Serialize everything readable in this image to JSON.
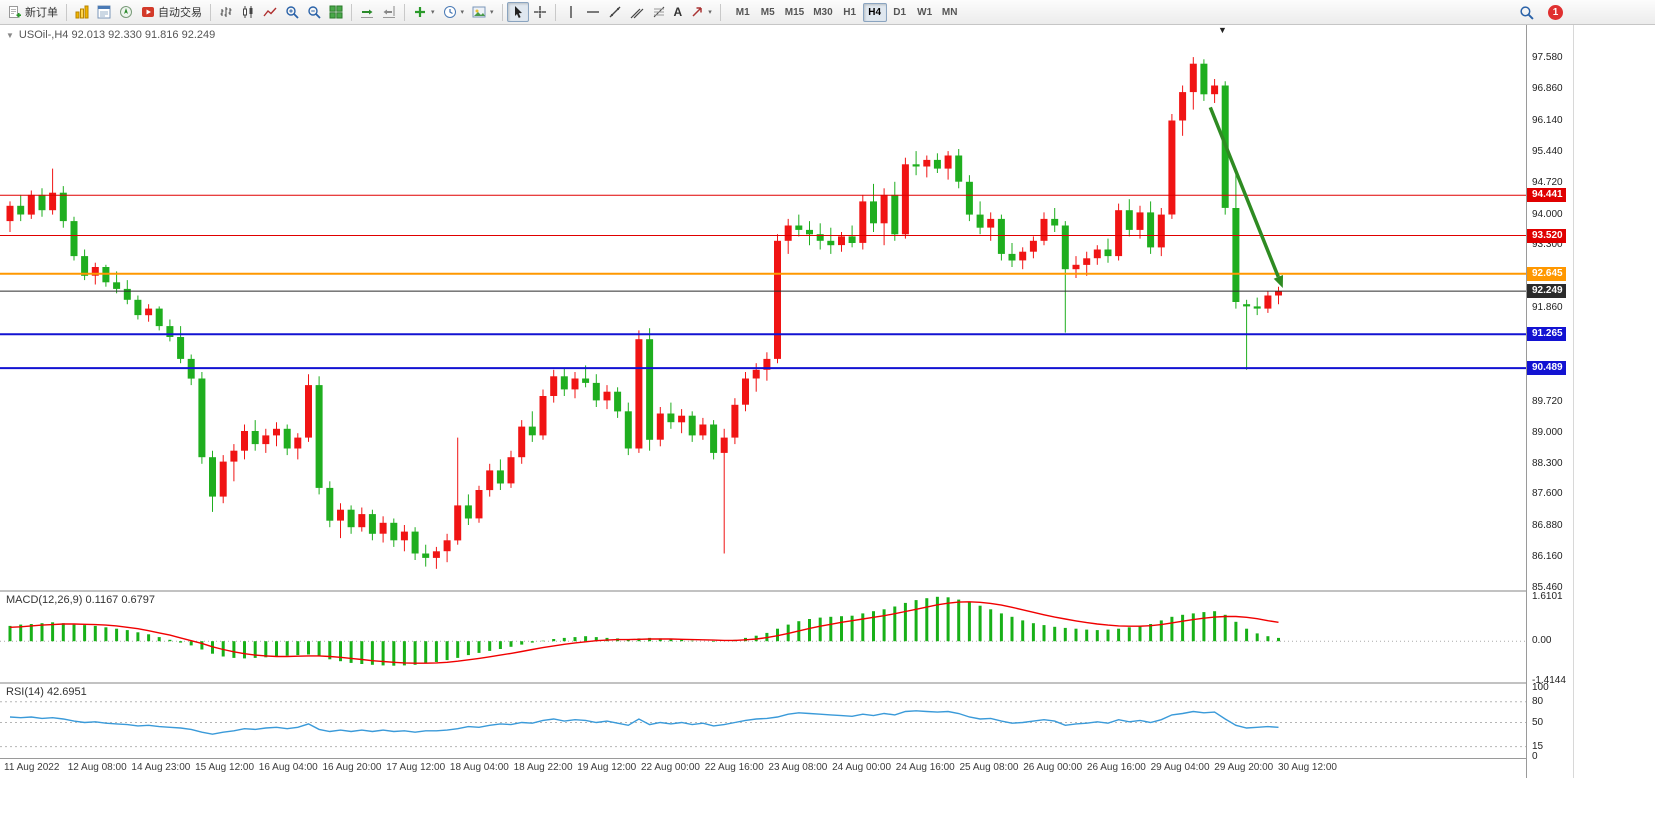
{
  "toolbar": {
    "new_order_label": "新订单",
    "autotrading_label": "自动交易",
    "timeframes": [
      "M1",
      "M5",
      "M15",
      "M30",
      "H1",
      "H4",
      "D1",
      "W1",
      "MN"
    ],
    "active_timeframe": "H4",
    "text_tool_label": "A",
    "notification_count": "1",
    "icon_names": [
      "new-order",
      "charts",
      "market-watch",
      "navigator",
      "autotrading",
      "bar-chart",
      "candlestick-chart",
      "line-chart",
      "zoom-in",
      "zoom-out",
      "tile-windows",
      "auto-scroll",
      "chart-shift",
      "add-indicator",
      "periods",
      "templates",
      "cursor",
      "crosshair",
      "vertical-line",
      "horizontal-line",
      "trendline",
      "equidistant-channel",
      "fibonacci",
      "text",
      "arrows",
      "search",
      "notifications"
    ]
  },
  "chart": {
    "title_text": "USOil-,H4 92.013 92.330 91.816 92.249",
    "oct_toggle": "▼",
    "shift_marker": "▼"
  },
  "chart_data": [
    {
      "type": "candlestick",
      "title": "USOil-,H4",
      "ohlc": {
        "open": 92.013,
        "high": 92.33,
        "low": 91.816,
        "close": 92.249
      },
      "ylim": [
        85.46,
        97.58
      ],
      "y_ticks": [
        97.58,
        96.86,
        96.14,
        95.44,
        94.72,
        94.0,
        93.3,
        92.58,
        91.86,
        91.16,
        90.44,
        89.72,
        89.0,
        88.3,
        87.6,
        86.88,
        86.16,
        85.46
      ],
      "x_labels": [
        "11 Aug 2022",
        "12 Aug 08:00",
        "14 Aug 23:00",
        "15 Aug 12:00",
        "16 Aug 04:00",
        "16 Aug 20:00",
        "17 Aug 12:00",
        "18 Aug 04:00",
        "18 Aug 22:00",
        "19 Aug 12:00",
        "22 Aug 00:00",
        "22 Aug 16:00",
        "23 Aug 08:00",
        "24 Aug 00:00",
        "24 Aug 16:00",
        "25 Aug 08:00",
        "26 Aug 00:00",
        "26 Aug 16:00",
        "29 Aug 04:00",
        "29 Aug 20:00",
        "30 Aug 12:00"
      ],
      "bull_color": "#f01414",
      "bear_color": "#1fae1f",
      "hlines": [
        {
          "price": 94.441,
          "color": "#e00000",
          "width": 1,
          "role": "resistance-line-label"
        },
        {
          "price": 93.52,
          "color": "#e00000",
          "width": 1,
          "role": "resistance-line-label"
        },
        {
          "price": 92.645,
          "color": "#ff9800",
          "width": 2,
          "role": "pivot-line-label"
        },
        {
          "price": 92.249,
          "color": "#2b2b2b",
          "width": 1,
          "role": "current-price-label"
        },
        {
          "price": 91.265,
          "color": "#1313d2",
          "width": 2,
          "role": "support-line-label"
        },
        {
          "price": 90.489,
          "color": "#1313d2",
          "width": 2,
          "role": "support-line-label"
        }
      ],
      "arrow": {
        "from_index": 112.6,
        "from_price": 96.45,
        "to_index": 119.4,
        "to_price": 92.32,
        "color": "#2e8b22"
      },
      "candles": [
        [
          93.85,
          94.3,
          93.6,
          94.2
        ],
        [
          94.2,
          94.45,
          93.85,
          94.0
        ],
        [
          94.0,
          94.55,
          93.9,
          94.45
        ],
        [
          94.45,
          94.6,
          93.95,
          94.1
        ],
        [
          94.1,
          95.05,
          94.0,
          94.5
        ],
        [
          94.5,
          94.65,
          93.7,
          93.85
        ],
        [
          93.85,
          93.95,
          92.95,
          93.05
        ],
        [
          93.05,
          93.2,
          92.5,
          92.6
        ],
        [
          92.6,
          92.9,
          92.4,
          92.8
        ],
        [
          92.8,
          92.85,
          92.35,
          92.45
        ],
        [
          92.45,
          92.7,
          92.2,
          92.3
        ],
        [
          92.3,
          92.5,
          91.95,
          92.05
        ],
        [
          92.05,
          92.15,
          91.6,
          91.7
        ],
        [
          91.7,
          91.95,
          91.55,
          91.85
        ],
        [
          91.85,
          91.9,
          91.35,
          91.45
        ],
        [
          91.45,
          91.6,
          91.1,
          91.2
        ],
        [
          91.2,
          91.45,
          90.6,
          90.7
        ],
        [
          90.7,
          90.8,
          90.1,
          90.25
        ],
        [
          90.25,
          90.4,
          88.3,
          88.45
        ],
        [
          88.45,
          88.6,
          87.2,
          87.55
        ],
        [
          87.55,
          88.5,
          87.4,
          88.35
        ],
        [
          88.35,
          88.75,
          87.9,
          88.6
        ],
        [
          88.6,
          89.2,
          88.4,
          89.05
        ],
        [
          89.05,
          89.3,
          88.6,
          88.75
        ],
        [
          88.75,
          89.1,
          88.55,
          88.95
        ],
        [
          88.95,
          89.25,
          88.7,
          89.1
        ],
        [
          89.1,
          89.2,
          88.5,
          88.65
        ],
        [
          88.65,
          89.0,
          88.4,
          88.9
        ],
        [
          88.9,
          90.35,
          88.8,
          90.1
        ],
        [
          90.1,
          90.3,
          87.6,
          87.75
        ],
        [
          87.75,
          87.9,
          86.85,
          87.0
        ],
        [
          87.0,
          87.4,
          86.6,
          87.25
        ],
        [
          87.25,
          87.35,
          86.7,
          86.85
        ],
        [
          86.85,
          87.3,
          86.75,
          87.15
        ],
        [
          87.15,
          87.25,
          86.55,
          86.7
        ],
        [
          86.7,
          87.1,
          86.5,
          86.95
        ],
        [
          86.95,
          87.05,
          86.4,
          86.55
        ],
        [
          86.55,
          86.9,
          86.3,
          86.75
        ],
        [
          86.75,
          86.85,
          86.1,
          86.25
        ],
        [
          86.25,
          86.45,
          85.95,
          86.15
        ],
        [
          86.15,
          86.4,
          85.9,
          86.3
        ],
        [
          86.3,
          86.7,
          86.05,
          86.55
        ],
        [
          86.55,
          88.9,
          86.45,
          87.35
        ],
        [
          87.35,
          87.6,
          86.9,
          87.05
        ],
        [
          87.05,
          87.8,
          86.95,
          87.7
        ],
        [
          87.7,
          88.3,
          87.55,
          88.15
        ],
        [
          88.15,
          88.4,
          87.7,
          87.85
        ],
        [
          87.85,
          88.6,
          87.75,
          88.45
        ],
        [
          88.45,
          89.3,
          88.3,
          89.15
        ],
        [
          89.15,
          89.5,
          88.8,
          88.95
        ],
        [
          88.95,
          90.0,
          88.85,
          89.85
        ],
        [
          89.85,
          90.45,
          89.7,
          90.3
        ],
        [
          90.3,
          90.5,
          89.85,
          90.0
        ],
        [
          90.0,
          90.4,
          89.8,
          90.25
        ],
        [
          90.25,
          90.55,
          90.05,
          90.15
        ],
        [
          90.15,
          90.35,
          89.6,
          89.75
        ],
        [
          89.75,
          90.1,
          89.55,
          89.95
        ],
        [
          89.95,
          90.05,
          89.35,
          89.5
        ],
        [
          89.5,
          89.7,
          88.5,
          88.65
        ],
        [
          88.65,
          91.35,
          88.55,
          91.15
        ],
        [
          91.15,
          91.4,
          88.6,
          88.85
        ],
        [
          88.85,
          89.6,
          88.7,
          89.45
        ],
        [
          89.45,
          89.7,
          89.1,
          89.25
        ],
        [
          89.25,
          89.55,
          89.0,
          89.4
        ],
        [
          89.4,
          89.5,
          88.8,
          88.95
        ],
        [
          88.95,
          89.35,
          88.85,
          89.2
        ],
        [
          89.2,
          89.3,
          88.4,
          88.55
        ],
        [
          88.55,
          89.1,
          86.25,
          88.9
        ],
        [
          88.9,
          89.8,
          88.75,
          89.65
        ],
        [
          89.65,
          90.4,
          89.5,
          90.25
        ],
        [
          90.25,
          90.6,
          89.95,
          90.45
        ],
        [
          90.45,
          90.85,
          90.2,
          90.7
        ],
        [
          90.7,
          93.55,
          90.6,
          93.4
        ],
        [
          93.4,
          93.9,
          93.1,
          93.75
        ],
        [
          93.75,
          94.0,
          93.5,
          93.65
        ],
        [
          93.65,
          93.85,
          93.3,
          93.55
        ],
        [
          93.55,
          93.8,
          93.2,
          93.4
        ],
        [
          93.4,
          93.7,
          93.1,
          93.3
        ],
        [
          93.3,
          93.6,
          93.15,
          93.5
        ],
        [
          93.5,
          93.75,
          93.25,
          93.35
        ],
        [
          93.35,
          94.45,
          93.2,
          94.3
        ],
        [
          94.3,
          94.7,
          93.6,
          93.8
        ],
        [
          93.8,
          94.6,
          93.3,
          94.45
        ],
        [
          94.45,
          94.75,
          93.4,
          93.55
        ],
        [
          93.55,
          95.3,
          93.45,
          95.15
        ],
        [
          95.15,
          95.45,
          94.9,
          95.1
        ],
        [
          95.1,
          95.35,
          94.85,
          95.25
        ],
        [
          95.25,
          95.4,
          94.95,
          95.05
        ],
        [
          95.05,
          95.45,
          94.8,
          95.35
        ],
        [
          95.35,
          95.5,
          94.6,
          94.75
        ],
        [
          94.75,
          94.9,
          93.85,
          94.0
        ],
        [
          94.0,
          94.3,
          93.55,
          93.7
        ],
        [
          93.7,
          94.05,
          93.4,
          93.9
        ],
        [
          93.9,
          94.0,
          92.95,
          93.1
        ],
        [
          93.1,
          93.35,
          92.8,
          92.95
        ],
        [
          92.95,
          93.25,
          92.75,
          93.15
        ],
        [
          93.15,
          93.5,
          93.0,
          93.4
        ],
        [
          93.4,
          94.05,
          93.3,
          93.9
        ],
        [
          93.9,
          94.15,
          93.6,
          93.75
        ],
        [
          93.75,
          93.85,
          91.3,
          92.75
        ],
        [
          92.75,
          93.05,
          92.55,
          92.85
        ],
        [
          92.85,
          93.15,
          92.6,
          93.0
        ],
        [
          93.0,
          93.3,
          92.85,
          93.2
        ],
        [
          93.2,
          93.45,
          92.9,
          93.05
        ],
        [
          93.05,
          94.25,
          92.95,
          94.1
        ],
        [
          94.1,
          94.35,
          93.5,
          93.65
        ],
        [
          93.65,
          94.2,
          93.45,
          94.05
        ],
        [
          94.05,
          94.3,
          93.1,
          93.25
        ],
        [
          93.25,
          94.15,
          93.05,
          94.0
        ],
        [
          94.0,
          96.3,
          93.9,
          96.15
        ],
        [
          96.15,
          96.95,
          95.8,
          96.8
        ],
        [
          96.8,
          97.6,
          96.4,
          97.45
        ],
        [
          97.45,
          97.55,
          96.6,
          96.75
        ],
        [
          96.75,
          97.1,
          96.55,
          96.95
        ],
        [
          96.95,
          97.05,
          94.0,
          94.15
        ],
        [
          94.15,
          95.05,
          91.85,
          92.0
        ],
        [
          91.95,
          92.05,
          90.45,
          91.9
        ],
        [
          91.9,
          92.1,
          91.7,
          91.85
        ],
        [
          91.85,
          92.25,
          91.75,
          92.15
        ],
        [
          92.15,
          92.35,
          91.95,
          92.25
        ]
      ]
    },
    {
      "type": "macd",
      "label": "MACD(12,26,9)",
      "display": "MACD(12,26,9) 0.1167 0.6797",
      "values": [
        0.1167,
        0.6797
      ],
      "ylim": [
        -1.4144,
        1.6101
      ],
      "y_ticks": [
        "1.6101",
        "0.00",
        "-1.4144"
      ],
      "histogram_color": "#18b018",
      "signal_color": "#f00000",
      "histogram": [
        0.55,
        0.6,
        0.62,
        0.65,
        0.68,
        0.65,
        0.6,
        0.58,
        0.55,
        0.5,
        0.45,
        0.4,
        0.32,
        0.25,
        0.15,
        0.05,
        -0.05,
        -0.15,
        -0.3,
        -0.45,
        -0.55,
        -0.6,
        -0.62,
        -0.6,
        -0.58,
        -0.55,
        -0.52,
        -0.5,
        -0.48,
        -0.55,
        -0.65,
        -0.72,
        -0.78,
        -0.82,
        -0.85,
        -0.87,
        -0.88,
        -0.87,
        -0.85,
        -0.8,
        -0.75,
        -0.68,
        -0.6,
        -0.5,
        -0.42,
        -0.35,
        -0.28,
        -0.2,
        -0.12,
        -0.05,
        0.02,
        0.08,
        0.12,
        0.15,
        0.18,
        0.15,
        0.12,
        0.1,
        0.05,
        0.1,
        0.12,
        0.1,
        0.08,
        0.05,
        0.02,
        0.0,
        -0.02,
        0.0,
        0.05,
        0.12,
        0.2,
        0.3,
        0.45,
        0.6,
        0.72,
        0.8,
        0.85,
        0.88,
        0.9,
        0.92,
        1.0,
        1.08,
        1.15,
        1.25,
        1.38,
        1.48,
        1.55,
        1.6,
        1.58,
        1.5,
        1.4,
        1.28,
        1.15,
        1.0,
        0.88,
        0.75,
        0.65,
        0.58,
        0.52,
        0.48,
        0.45,
        0.42,
        0.4,
        0.42,
        0.45,
        0.5,
        0.55,
        0.62,
        0.75,
        0.88,
        0.95,
        1.0,
        1.05,
        1.08,
        0.95,
        0.7,
        0.45,
        0.28,
        0.18,
        0.12
      ],
      "signal": [
        0.5,
        0.52,
        0.55,
        0.58,
        0.6,
        0.62,
        0.62,
        0.61,
        0.6,
        0.58,
        0.55,
        0.5,
        0.45,
        0.38,
        0.3,
        0.22,
        0.12,
        0.02,
        -0.08,
        -0.2,
        -0.3,
        -0.38,
        -0.45,
        -0.5,
        -0.53,
        -0.55,
        -0.55,
        -0.54,
        -0.53,
        -0.53,
        -0.55,
        -0.58,
        -0.62,
        -0.66,
        -0.7,
        -0.73,
        -0.76,
        -0.78,
        -0.79,
        -0.79,
        -0.78,
        -0.76,
        -0.72,
        -0.67,
        -0.62,
        -0.56,
        -0.5,
        -0.44,
        -0.37,
        -0.3,
        -0.23,
        -0.17,
        -0.11,
        -0.06,
        -0.02,
        0.02,
        0.04,
        0.06,
        0.06,
        0.07,
        0.08,
        0.08,
        0.08,
        0.07,
        0.06,
        0.05,
        0.04,
        0.03,
        0.03,
        0.05,
        0.08,
        0.13,
        0.2,
        0.28,
        0.37,
        0.46,
        0.54,
        0.61,
        0.68,
        0.74,
        0.8,
        0.86,
        0.92,
        0.99,
        1.07,
        1.15,
        1.23,
        1.31,
        1.37,
        1.41,
        1.42,
        1.4,
        1.36,
        1.3,
        1.22,
        1.13,
        1.04,
        0.95,
        0.87,
        0.8,
        0.73,
        0.67,
        0.62,
        0.58,
        0.55,
        0.54,
        0.54,
        0.56,
        0.6,
        0.66,
        0.72,
        0.78,
        0.83,
        0.87,
        0.89,
        0.89,
        0.86,
        0.81,
        0.74,
        0.68
      ]
    },
    {
      "type": "rsi",
      "label": "RSI(14)",
      "display": "RSI(14) 42.6951",
      "value": 42.6951,
      "ylim": [
        0,
        100
      ],
      "y_ticks": [
        "100",
        "80",
        "50",
        "15",
        "0"
      ],
      "levels": [
        80,
        50,
        15
      ],
      "line_color": "#3a9ad9",
      "values": [
        58,
        57,
        58,
        56,
        57,
        55,
        52,
        50,
        51,
        49,
        48,
        47,
        45,
        46,
        44,
        43,
        42,
        40,
        36,
        33,
        36,
        38,
        41,
        40,
        42,
        43,
        41,
        43,
        48,
        40,
        37,
        39,
        37,
        39,
        37,
        39,
        37,
        38,
        36,
        38,
        38,
        39,
        41,
        44,
        43,
        46,
        48,
        47,
        50,
        49,
        53,
        55,
        52,
        54,
        53,
        50,
        52,
        49,
        46,
        55,
        47,
        50,
        48,
        50,
        47,
        49,
        45,
        47,
        50,
        53,
        55,
        56,
        58,
        62,
        64,
        63,
        62,
        61,
        60,
        59,
        62,
        60,
        63,
        61,
        66,
        67,
        66,
        65,
        66,
        63,
        58,
        55,
        56,
        52,
        49,
        50,
        52,
        54,
        52,
        46,
        48,
        49,
        51,
        49,
        54,
        51,
        53,
        50,
        54,
        61,
        63,
        66,
        64,
        65,
        55,
        46,
        42,
        43,
        44,
        43
      ]
    }
  ]
}
